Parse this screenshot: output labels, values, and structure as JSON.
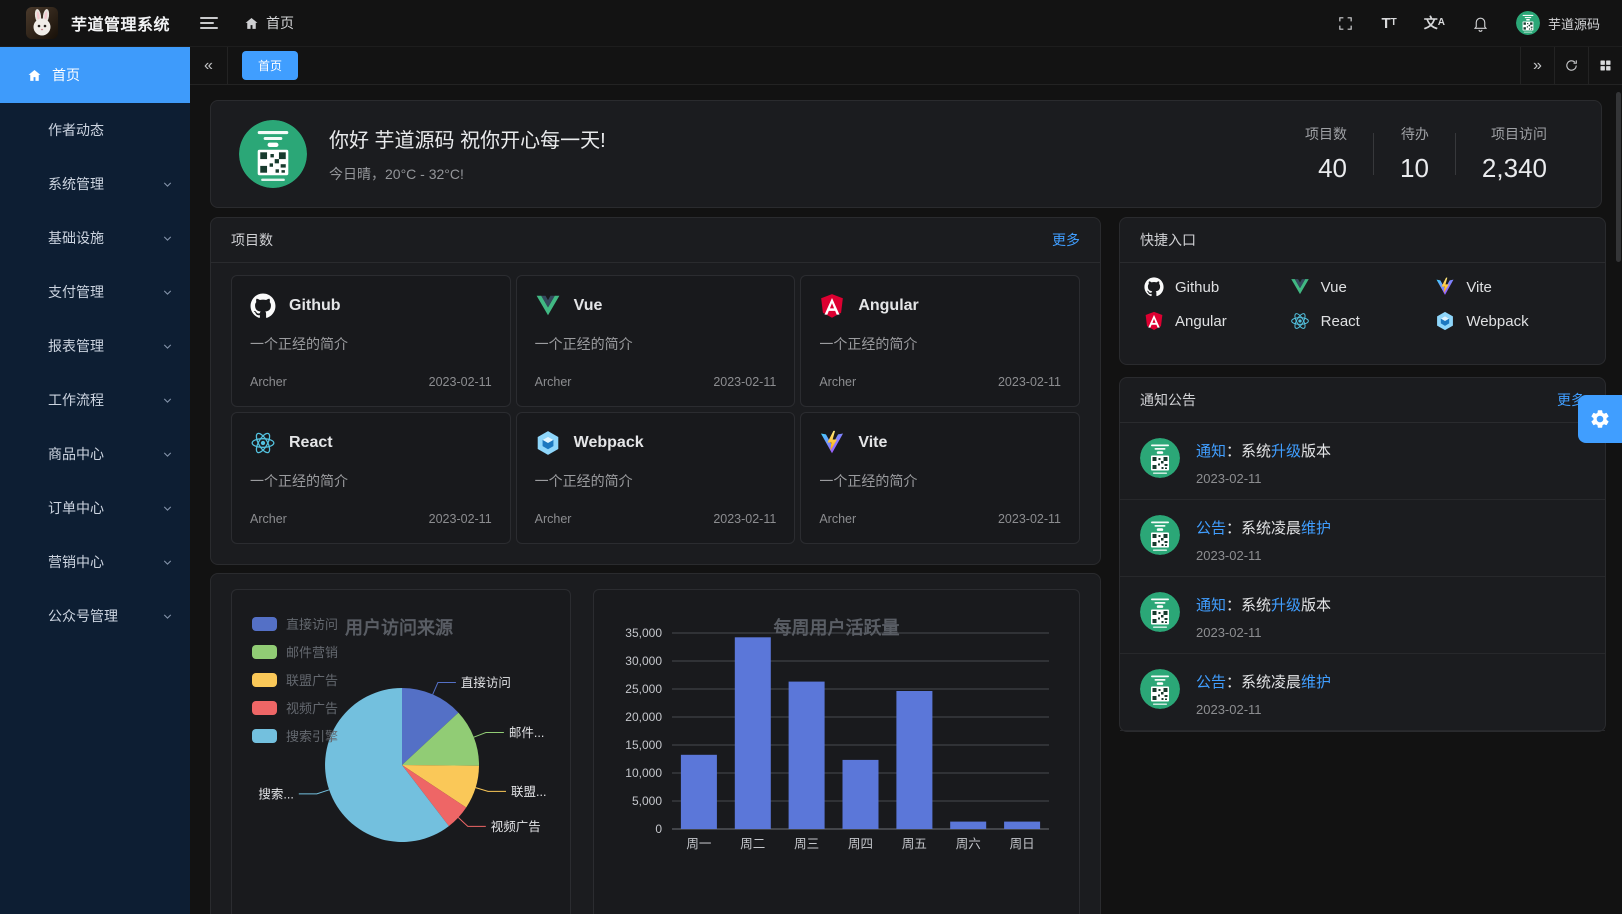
{
  "colors": {
    "primary": "#409eff",
    "sidebar_bg": "#0d1e33",
    "link": "#409eff"
  },
  "navbar": {
    "title": "芋道管理系统",
    "breadcrumb_home": "首页",
    "username": "芋道源码",
    "icons": [
      "collapse-menu-icon",
      "fullscreen-icon",
      "font-size-icon",
      "translate-icon",
      "bell-icon"
    ]
  },
  "tabbar": {
    "active_tab": "首页"
  },
  "sidebar": {
    "active_item": {
      "label": "首页",
      "icon": "home-icon"
    },
    "items": [
      {
        "label": "作者动态",
        "has_children": false
      },
      {
        "label": "系统管理",
        "has_children": true
      },
      {
        "label": "基础设施",
        "has_children": true
      },
      {
        "label": "支付管理",
        "has_children": true
      },
      {
        "label": "报表管理",
        "has_children": true
      },
      {
        "label": "工作流程",
        "has_children": true
      },
      {
        "label": "商品中心",
        "has_children": true
      },
      {
        "label": "订单中心",
        "has_children": true
      },
      {
        "label": "营销中心",
        "has_children": true
      },
      {
        "label": "公众号管理",
        "has_children": true
      }
    ]
  },
  "welcome": {
    "greeting": "你好 芋道源码 祝你开心每一天!",
    "weather": "今日晴，20°C - 32°C!",
    "stats": [
      {
        "label": "项目数",
        "value": "40"
      },
      {
        "label": "待办",
        "value": "10"
      },
      {
        "label": "项目访问",
        "value": "2,340"
      }
    ]
  },
  "projects": {
    "title": "项目数",
    "more_label": "更多",
    "desc": "一个正经的简介",
    "author": "Archer",
    "date": "2023-02-11",
    "items": [
      {
        "name": "Github",
        "icon": "github-icon"
      },
      {
        "name": "Vue",
        "icon": "vue-icon"
      },
      {
        "name": "Angular",
        "icon": "angular-icon"
      },
      {
        "name": "React",
        "icon": "react-icon"
      },
      {
        "name": "Webpack",
        "icon": "webpack-icon"
      },
      {
        "name": "Vite",
        "icon": "vite-icon"
      }
    ]
  },
  "shortcuts": {
    "title": "快捷入口",
    "items": [
      {
        "name": "Github",
        "icon": "github-icon"
      },
      {
        "name": "Vue",
        "icon": "vue-icon"
      },
      {
        "name": "Vite",
        "icon": "vite-icon"
      },
      {
        "name": "Angular",
        "icon": "angular-icon"
      },
      {
        "name": "React",
        "icon": "react-icon"
      },
      {
        "name": "Webpack",
        "icon": "webpack-icon"
      }
    ]
  },
  "notices": {
    "title": "通知公告",
    "more_label": "更多",
    "items": [
      {
        "segments": [
          {
            "text": "通知",
            "blue": true
          },
          {
            "text": "：系统",
            "blue": false
          },
          {
            "text": "升级",
            "blue": true
          },
          {
            "text": "版本",
            "blue": false
          }
        ],
        "date": "2023-02-11"
      },
      {
        "segments": [
          {
            "text": "公告",
            "blue": true
          },
          {
            "text": "：系统凌晨",
            "blue": false
          },
          {
            "text": "维护",
            "blue": true
          }
        ],
        "date": "2023-02-11"
      },
      {
        "segments": [
          {
            "text": "通知",
            "blue": true
          },
          {
            "text": "：系统",
            "blue": false
          },
          {
            "text": "升级",
            "blue": true
          },
          {
            "text": "版本",
            "blue": false
          }
        ],
        "date": "2023-02-11"
      },
      {
        "segments": [
          {
            "text": "公告",
            "blue": true
          },
          {
            "text": "：系统凌晨",
            "blue": false
          },
          {
            "text": "维护",
            "blue": true
          }
        ],
        "date": "2023-02-11"
      }
    ]
  },
  "chart_data": [
    {
      "type": "pie",
      "title": "用户访问来源",
      "legend_position": "left",
      "labels": [
        "直接访问",
        "邮件营销",
        "联盟广告",
        "视频广告",
        "搜索引擎"
      ],
      "display_labels": [
        "直接访问",
        "邮件...",
        "联盟...",
        "视频广告",
        "搜索..."
      ],
      "values": [
        335,
        310,
        234,
        135,
        1548
      ],
      "colors": [
        "#5470c6",
        "#91cc75",
        "#fac858",
        "#ee6666",
        "#73c0de"
      ]
    },
    {
      "type": "bar",
      "title": "每周用户活跃量",
      "categories": [
        "周一",
        "周二",
        "周三",
        "周四",
        "周五",
        "周六",
        "周日"
      ],
      "values": [
        13253,
        34235,
        26321,
        12340,
        24643,
        1322,
        1324
      ],
      "ylim": [
        0,
        35000
      ],
      "ytick_step": 5000,
      "bar_color": "#5b77d9",
      "grid": true
    }
  ]
}
